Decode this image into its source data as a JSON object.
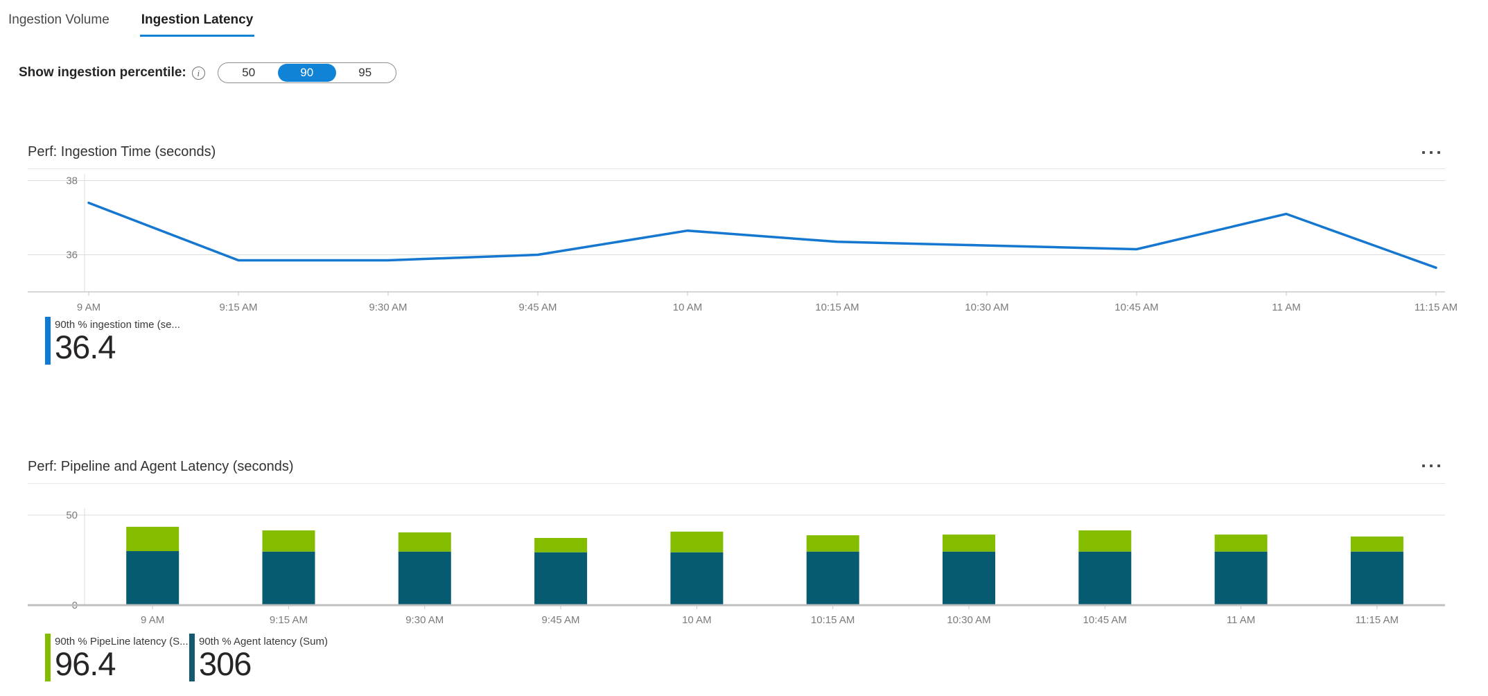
{
  "tabs": [
    {
      "label": "Ingestion Volume",
      "active": false
    },
    {
      "label": "Ingestion Latency",
      "active": true
    }
  ],
  "percentile_control": {
    "label": "Show ingestion percentile:",
    "info_glyph": "i",
    "options": [
      "50",
      "90",
      "95"
    ],
    "selected": "90"
  },
  "colors": {
    "accent_blue": "#1183d6",
    "tab_underline": "#1183d6",
    "line_blue": "#1577d0",
    "legend_blue": "#0f7bd6",
    "pipeline_green": "#84bd00",
    "agent_teal": "#075b70",
    "agent_teal_legend": "#135a71",
    "gridline": "#dcdcdc",
    "axis_line": "#c8c8c8",
    "axis_text": "#7a7a78"
  },
  "chart_data": [
    {
      "type": "line",
      "title": "Perf: Ingestion Time (seconds)",
      "x": [
        "9 AM",
        "9:15 AM",
        "9:30 AM",
        "9:45 AM",
        "10 AM",
        "10:15 AM",
        "10:30 AM",
        "10:45 AM",
        "11 AM",
        "11:15 AM"
      ],
      "series": [
        {
          "name": "90th % ingestion time (se...",
          "color": "#1577d0",
          "values": [
            37.4,
            35.85,
            35.85,
            36.0,
            36.65,
            36.35,
            36.25,
            36.15,
            37.1,
            35.65
          ]
        }
      ],
      "ylim": [
        35,
        38.3
      ],
      "yticks": [
        {
          "v": 38,
          "label": "38"
        },
        {
          "v": 36,
          "label": "36"
        }
      ],
      "grid": true,
      "legend_position": "bottom-left",
      "legend": {
        "label": "90th % ingestion time (se...",
        "value": "36.4",
        "color": "#0f7bd6"
      }
    },
    {
      "type": "bar",
      "stacked": true,
      "title": "Perf: Pipeline and Agent Latency (seconds)",
      "x": [
        "9 AM",
        "9:15 AM",
        "9:30 AM",
        "9:45 AM",
        "10 AM",
        "10:15 AM",
        "10:30 AM",
        "10:45 AM",
        "11 AM",
        "11:15 AM"
      ],
      "series": [
        {
          "name": "90th % Agent latency (Sum)",
          "color": "#075b70",
          "values": [
            30,
            29.7,
            29.7,
            29.3,
            29.3,
            29.7,
            29.7,
            29.7,
            29.7,
            29.7
          ]
        },
        {
          "name": "90th % PipeLine latency (S...",
          "color": "#84bd00",
          "values": [
            13.5,
            11.8,
            10.7,
            8.0,
            11.5,
            9.1,
            9.5,
            11.8,
            9.5,
            8.4
          ]
        }
      ],
      "ylim": [
        0,
        55
      ],
      "yticks": [
        {
          "v": 50,
          "label": "50"
        },
        {
          "v": 0,
          "label": "0"
        }
      ],
      "grid": true,
      "legend_position": "bottom-left",
      "legends": [
        {
          "label": "90th % PipeLine latency (S...",
          "value": "96.4",
          "color": "#84bd00"
        },
        {
          "label": "90th % Agent latency (Sum)",
          "value": "306",
          "color": "#135a71"
        }
      ]
    }
  ]
}
